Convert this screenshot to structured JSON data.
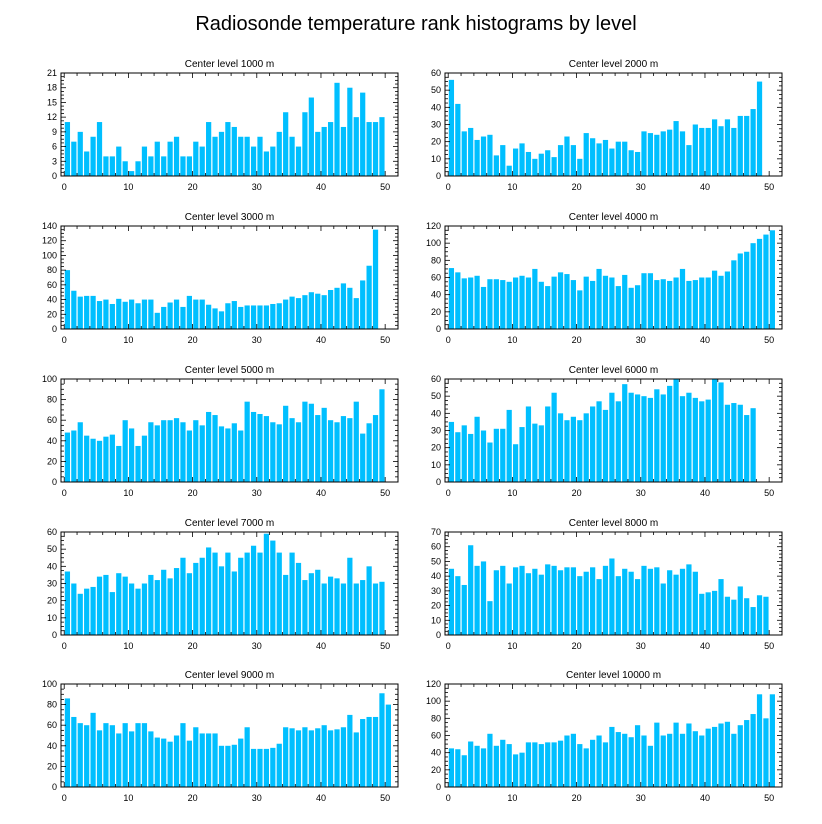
{
  "title": "Radiosonde temperature rank histograms by level",
  "colors": {
    "bar": "#00BFFF",
    "axis": "#000000"
  },
  "chart_data": [
    {
      "type": "bar",
      "title": "Center level 1000 m",
      "xlim": [
        -0.5,
        52
      ],
      "ylim": [
        0,
        21
      ],
      "xticks": [
        0,
        10,
        20,
        30,
        40,
        50
      ],
      "yticks": [
        0,
        3,
        6,
        9,
        12,
        15,
        18,
        21
      ],
      "values": [
        11,
        7,
        9,
        5,
        8,
        11,
        4,
        4,
        6,
        3,
        1,
        3,
        6,
        4,
        7,
        4,
        7,
        8,
        4,
        4,
        7,
        6,
        11,
        8,
        9,
        11,
        10,
        8,
        8,
        6,
        8,
        5,
        6,
        9,
        13,
        8,
        6,
        13,
        16,
        9,
        10,
        11,
        19,
        10,
        18,
        12,
        17,
        11,
        11,
        12
      ]
    },
    {
      "type": "bar",
      "title": "Center level 2000 m",
      "xlim": [
        -0.5,
        52
      ],
      "ylim": [
        0,
        60
      ],
      "xticks": [
        0,
        10,
        20,
        30,
        40,
        50
      ],
      "yticks": [
        0,
        10,
        20,
        30,
        40,
        50,
        60
      ],
      "values": [
        56,
        42,
        26,
        28,
        21,
        23,
        24,
        12,
        18,
        6,
        16,
        19,
        14,
        10,
        13,
        15,
        11,
        18,
        23,
        18,
        10,
        25,
        22,
        19,
        21,
        16,
        20,
        20,
        15,
        14,
        26,
        25,
        24,
        26,
        27,
        32,
        26,
        18,
        30,
        28,
        28,
        33,
        29,
        33,
        28,
        35,
        35,
        39,
        55
      ]
    },
    {
      "type": "bar",
      "title": "Center level 3000 m",
      "xlim": [
        -0.5,
        52
      ],
      "ylim": [
        0,
        140
      ],
      "xticks": [
        0,
        10,
        20,
        30,
        40,
        50
      ],
      "yticks": [
        0,
        20,
        40,
        60,
        80,
        100,
        120,
        140
      ],
      "values": [
        80,
        52,
        44,
        45,
        45,
        38,
        40,
        34,
        41,
        37,
        40,
        35,
        40,
        40,
        22,
        30,
        36,
        40,
        30,
        45,
        40,
        40,
        33,
        28,
        24,
        35,
        38,
        30,
        32,
        32,
        32,
        32,
        34,
        35,
        40,
        44,
        42,
        46,
        50,
        48,
        46,
        53,
        56,
        62,
        56,
        42,
        66,
        86,
        135
      ]
    },
    {
      "type": "bar",
      "title": "Center level 4000 m",
      "xlim": [
        -0.5,
        52
      ],
      "ylim": [
        0,
        120
      ],
      "xticks": [
        0,
        10,
        20,
        30,
        40,
        50
      ],
      "yticks": [
        0,
        20,
        40,
        60,
        80,
        100,
        120
      ],
      "values": [
        71,
        66,
        59,
        60,
        62,
        49,
        58,
        58,
        57,
        55,
        60,
        62,
        60,
        70,
        55,
        50,
        61,
        66,
        64,
        57,
        45,
        61,
        56,
        70,
        62,
        60,
        50,
        63,
        48,
        51,
        65,
        65,
        57,
        58,
        56,
        60,
        70,
        56,
        57,
        60,
        60,
        68,
        62,
        67,
        80,
        88,
        90,
        100,
        105,
        110,
        115
      ]
    },
    {
      "type": "bar",
      "title": "Center level 5000 m",
      "xlim": [
        -0.5,
        52
      ],
      "ylim": [
        0,
        100
      ],
      "xticks": [
        0,
        10,
        20,
        30,
        40,
        50
      ],
      "yticks": [
        0,
        20,
        40,
        60,
        80,
        100
      ],
      "values": [
        48,
        50,
        58,
        45,
        42,
        40,
        44,
        46,
        35,
        60,
        52,
        35,
        45,
        58,
        55,
        60,
        60,
        62,
        58,
        50,
        60,
        55,
        68,
        65,
        54,
        52,
        57,
        50,
        78,
        68,
        66,
        64,
        58,
        56,
        74,
        62,
        58,
        78,
        76,
        65,
        72,
        60,
        58,
        64,
        62,
        78,
        47,
        57,
        65,
        90
      ]
    },
    {
      "type": "bar",
      "title": "Center level 6000 m",
      "xlim": [
        -0.5,
        52
      ],
      "ylim": [
        0,
        60
      ],
      "xticks": [
        0,
        10,
        20,
        30,
        40,
        50
      ],
      "yticks": [
        0,
        10,
        20,
        30,
        40,
        50,
        60
      ],
      "values": [
        35,
        29,
        33,
        28,
        38,
        30,
        23,
        31,
        31,
        42,
        22,
        32,
        44,
        34,
        33,
        44,
        52,
        40,
        36,
        38,
        36,
        40,
        44,
        47,
        42,
        52,
        47,
        57,
        52,
        51,
        50,
        49,
        54,
        51,
        56,
        60,
        50,
        52,
        49,
        47,
        48,
        60,
        58,
        45,
        46,
        45,
        39,
        43
      ]
    },
    {
      "type": "bar",
      "title": "Center level 7000 m",
      "xlim": [
        -0.5,
        52
      ],
      "ylim": [
        0,
        60
      ],
      "xticks": [
        0,
        10,
        20,
        30,
        40,
        50
      ],
      "yticks": [
        0,
        10,
        20,
        30,
        40,
        50,
        60
      ],
      "values": [
        37,
        30,
        24,
        27,
        28,
        34,
        35,
        25,
        36,
        34,
        30,
        27,
        30,
        35,
        32,
        38,
        33,
        39,
        45,
        36,
        42,
        45,
        51,
        48,
        40,
        48,
        37,
        45,
        48,
        52,
        48,
        59,
        55,
        48,
        35,
        48,
        42,
        32,
        36,
        38,
        30,
        34,
        33,
        30,
        45,
        30,
        32,
        40,
        30,
        31
      ]
    },
    {
      "type": "bar",
      "title": "Center level 8000 m",
      "xlim": [
        -0.5,
        52
      ],
      "ylim": [
        0,
        70
      ],
      "xticks": [
        0,
        10,
        20,
        30,
        40,
        50
      ],
      "yticks": [
        0,
        10,
        20,
        30,
        40,
        50,
        60,
        70
      ],
      "values": [
        45,
        40,
        34,
        61,
        47,
        50,
        23,
        44,
        47,
        35,
        46,
        47,
        42,
        45,
        41,
        48,
        47,
        44,
        46,
        46,
        40,
        43,
        46,
        38,
        47,
        52,
        40,
        45,
        43,
        38,
        47,
        45,
        46,
        35,
        44,
        41,
        45,
        48,
        43,
        28,
        29,
        30,
        38,
        26,
        24,
        33,
        25,
        19,
        27,
        26
      ]
    },
    {
      "type": "bar",
      "title": "Center level 9000 m",
      "xlim": [
        -0.5,
        52
      ],
      "ylim": [
        0,
        100
      ],
      "xticks": [
        0,
        10,
        20,
        30,
        40,
        50
      ],
      "yticks": [
        0,
        20,
        40,
        60,
        80,
        100
      ],
      "values": [
        86,
        68,
        62,
        60,
        72,
        55,
        62,
        60,
        52,
        62,
        54,
        62,
        62,
        54,
        48,
        47,
        44,
        50,
        62,
        45,
        58,
        52,
        52,
        52,
        40,
        40,
        41,
        47,
        58,
        37,
        37,
        37,
        38,
        42,
        58,
        57,
        55,
        58,
        55,
        57,
        60,
        55,
        56,
        58,
        70,
        53,
        66,
        68,
        68,
        91,
        80
      ]
    },
    {
      "type": "bar",
      "title": "Center level 10000 m",
      "xlim": [
        -0.5,
        52
      ],
      "ylim": [
        0,
        120
      ],
      "xticks": [
        0,
        10,
        20,
        30,
        40,
        50
      ],
      "yticks": [
        0,
        20,
        40,
        60,
        80,
        100,
        120
      ],
      "values": [
        45,
        44,
        37,
        53,
        48,
        45,
        62,
        48,
        55,
        50,
        38,
        40,
        52,
        52,
        50,
        52,
        52,
        54,
        60,
        62,
        50,
        45,
        55,
        60,
        52,
        70,
        64,
        62,
        58,
        72,
        60,
        48,
        75,
        60,
        62,
        75,
        62,
        74,
        65,
        60,
        68,
        70,
        74,
        76,
        62,
        72,
        78,
        85,
        108,
        80,
        108
      ]
    }
  ]
}
